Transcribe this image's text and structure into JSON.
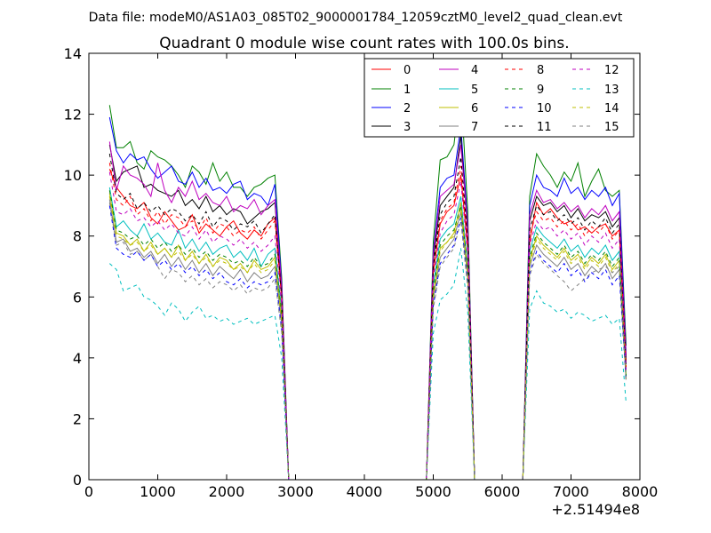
{
  "chart_data": {
    "type": "line",
    "suptitle": "Data file: modeM0/AS1A03_085T02_9000001784_12059cztM0_level2_quad_clean.evt",
    "title": "Quadrant 0 module wise count rates with 100.0s bins.",
    "xlabel": "",
    "ylabel": "",
    "x_offset_label": "+2.51494e8",
    "xlim": [
      0,
      8000
    ],
    "ylim": [
      0,
      14
    ],
    "xticks": [
      "0",
      "1000",
      "2000",
      "3000",
      "4000",
      "5000",
      "6000",
      "7000",
      "8000"
    ],
    "yticks": [
      "0",
      "2",
      "4",
      "6",
      "8",
      "10",
      "12",
      "14"
    ],
    "legend_position": "top-right",
    "segments": [
      {
        "x_start": 300,
        "x_step": 100,
        "n": 26
      },
      {
        "x_start": 5000,
        "x_step": 100,
        "n": 6
      },
      {
        "x_start": 6400,
        "x_step": 100,
        "n": 15
      }
    ],
    "gap_x": [
      2900,
      3000,
      4000,
      4900,
      5600,
      6300
    ],
    "series": [
      {
        "name": "0",
        "color": "#ff0000",
        "dash": false,
        "level": 8.4,
        "segments": [
          [
            10.2,
            9.6,
            9.3,
            9.0,
            8.9,
            9.1,
            8.6,
            8.4,
            8.8,
            8.5,
            8.2,
            8.3,
            8.7,
            8.1,
            8.4,
            8.2,
            8.0,
            8.3,
            8.5,
            8.1,
            7.9,
            8.2,
            8.0,
            8.4,
            8.6,
            6.0
          ],
          [
            6.8,
            8.4,
            8.8,
            9.0,
            10.0,
            7.6
          ],
          [
            7.8,
            9.1,
            8.7,
            8.9,
            8.6,
            8.4,
            8.5,
            8.2,
            8.3,
            8.1,
            8.3,
            8.4,
            8.0,
            8.2,
            3.6
          ]
        ]
      },
      {
        "name": "1",
        "color": "#008000",
        "dash": false,
        "level": 10.0,
        "segments": [
          [
            12.3,
            10.9,
            10.9,
            11.1,
            10.4,
            10.2,
            10.8,
            10.6,
            10.5,
            10.3,
            10.0,
            9.6,
            10.3,
            10.1,
            9.7,
            10.4,
            9.8,
            10.1,
            9.6,
            9.6,
            9.3,
            9.6,
            9.7,
            9.9,
            10.0,
            6.6
          ],
          [
            7.8,
            10.5,
            10.6,
            11.0,
            12.9,
            8.8
          ],
          [
            9.3,
            10.7,
            10.3,
            10.0,
            9.6,
            10.1,
            9.8,
            10.4,
            9.3,
            9.8,
            10.2,
            9.5,
            9.3,
            9.5,
            4.4
          ]
        ]
      },
      {
        "name": "2",
        "color": "#0000ff",
        "dash": false,
        "level": 9.8,
        "segments": [
          [
            11.9,
            10.8,
            10.4,
            10.7,
            10.5,
            10.6,
            10.2,
            9.9,
            10.1,
            10.3,
            9.8,
            9.7,
            10.1,
            9.6,
            9.9,
            9.5,
            9.6,
            9.4,
            9.7,
            9.8,
            9.2,
            9.4,
            9.3,
            9.0,
            9.7,
            6.4
          ],
          [
            7.5,
            9.6,
            9.9,
            10.0,
            11.6,
            8.4
          ],
          [
            9.0,
            10.0,
            9.6,
            9.5,
            9.3,
            9.9,
            9.4,
            9.6,
            9.2,
            9.5,
            9.3,
            9.6,
            9.0,
            9.4,
            4.1
          ]
        ]
      },
      {
        "name": "3",
        "color": "#000000",
        "dash": false,
        "level": 9.0,
        "segments": [
          [
            11.0,
            9.8,
            10.1,
            10.2,
            10.3,
            9.6,
            9.7,
            9.5,
            9.4,
            9.3,
            9.5,
            9.0,
            9.2,
            8.9,
            9.3,
            8.8,
            9.0,
            8.7,
            8.9,
            8.8,
            8.4,
            8.6,
            8.8,
            8.9,
            9.1,
            6.2
          ],
          [
            7.2,
            9.0,
            9.3,
            9.6,
            11.3,
            8.1
          ],
          [
            8.5,
            9.3,
            9.0,
            9.1,
            8.8,
            9.0,
            8.6,
            8.9,
            8.5,
            8.7,
            8.6,
            8.8,
            8.3,
            8.6,
            3.9
          ]
        ]
      },
      {
        "name": "4",
        "color": "#bf00bf",
        "dash": false,
        "level": 9.4,
        "segments": [
          [
            11.1,
            9.5,
            10.3,
            10.0,
            9.9,
            9.7,
            9.3,
            10.4,
            9.5,
            9.1,
            9.6,
            9.3,
            9.8,
            9.2,
            9.4,
            9.1,
            9.0,
            9.3,
            8.8,
            9.0,
            8.9,
            9.2,
            8.7,
            9.0,
            9.2,
            6.3
          ],
          [
            7.4,
            9.3,
            9.5,
            9.7,
            11.0,
            8.3
          ],
          [
            8.7,
            9.5,
            9.1,
            9.2,
            8.9,
            9.1,
            8.8,
            9.0,
            8.6,
            8.9,
            8.7,
            9.0,
            8.5,
            8.8,
            4.0
          ]
        ]
      },
      {
        "name": "5",
        "color": "#00bfbf",
        "dash": false,
        "level": 7.9,
        "segments": [
          [
            9.6,
            8.3,
            8.5,
            8.2,
            8.0,
            8.4,
            7.9,
            8.1,
            7.8,
            7.7,
            8.2,
            7.6,
            7.9,
            7.5,
            7.8,
            7.4,
            7.6,
            7.7,
            7.3,
            7.5,
            7.2,
            7.6,
            7.0,
            7.4,
            7.6,
            5.5
          ],
          [
            6.4,
            7.9,
            8.2,
            8.4,
            9.3,
            7.0
          ],
          [
            7.5,
            8.3,
            8.0,
            7.8,
            7.6,
            7.9,
            7.5,
            7.7,
            7.3,
            7.6,
            7.4,
            7.7,
            7.2,
            7.5,
            3.5
          ]
        ]
      },
      {
        "name": "6",
        "color": "#bfbf00",
        "dash": false,
        "level": 7.6,
        "segments": [
          [
            9.4,
            8.1,
            8.0,
            7.7,
            7.9,
            7.5,
            7.8,
            7.4,
            7.6,
            7.3,
            7.7,
            7.2,
            7.5,
            7.1,
            7.4,
            7.0,
            7.3,
            7.2,
            6.9,
            7.1,
            6.8,
            7.2,
            6.9,
            7.0,
            7.3,
            5.3
          ],
          [
            6.1,
            7.6,
            7.8,
            8.1,
            9.1,
            6.8
          ],
          [
            7.2,
            8.0,
            7.7,
            7.5,
            7.3,
            7.6,
            7.2,
            7.4,
            7.0,
            7.3,
            7.1,
            7.4,
            6.9,
            7.2,
            3.4
          ]
        ]
      },
      {
        "name": "7",
        "color": "#808080",
        "dash": false,
        "level": 7.3,
        "segments": [
          [
            9.2,
            7.8,
            7.9,
            7.5,
            7.6,
            7.3,
            7.5,
            7.1,
            7.4,
            7.0,
            7.3,
            6.9,
            7.2,
            6.8,
            7.1,
            6.7,
            7.0,
            6.8,
            6.6,
            6.9,
            6.5,
            6.8,
            6.6,
            6.7,
            7.0,
            5.1
          ],
          [
            5.9,
            7.3,
            7.6,
            7.9,
            8.8,
            6.6
          ],
          [
            7.0,
            7.7,
            7.4,
            7.2,
            7.0,
            7.3,
            6.9,
            7.1,
            6.7,
            7.0,
            6.8,
            7.1,
            6.6,
            6.9,
            3.3
          ]
        ]
      },
      {
        "name": "8",
        "color": "#ff0000",
        "dash": true,
        "level": 8.6,
        "segments": [
          [
            10.4,
            9.2,
            9.0,
            9.3,
            8.7,
            8.9,
            8.5,
            8.8,
            8.4,
            8.7,
            8.6,
            8.3,
            8.5,
            8.2,
            8.6,
            8.1,
            8.4,
            8.3,
            8.0,
            8.2,
            8.1,
            8.3,
            7.9,
            8.2,
            8.5,
            5.9
          ],
          [
            6.9,
            8.5,
            8.9,
            9.1,
            10.3,
            7.8
          ],
          [
            8.0,
            8.8,
            8.5,
            8.6,
            8.3,
            8.5,
            8.2,
            8.4,
            8.0,
            8.3,
            8.1,
            8.4,
            7.9,
            8.2,
            3.7
          ]
        ]
      },
      {
        "name": "9",
        "color": "#008000",
        "dash": true,
        "level": 7.7,
        "segments": [
          [
            9.5,
            8.2,
            8.1,
            7.9,
            8.0,
            7.7,
            7.9,
            7.6,
            7.8,
            7.5,
            7.7,
            7.4,
            7.6,
            7.3,
            7.5,
            7.2,
            7.4,
            7.3,
            7.1,
            7.2,
            7.0,
            7.3,
            7.0,
            7.1,
            7.4,
            5.4
          ],
          [
            6.2,
            7.7,
            8.0,
            8.2,
            9.0,
            6.9
          ],
          [
            7.3,
            8.1,
            7.8,
            7.6,
            7.4,
            7.7,
            7.3,
            7.5,
            7.1,
            7.4,
            7.2,
            7.5,
            7.0,
            7.3,
            3.4
          ]
        ]
      },
      {
        "name": "10",
        "color": "#0000ff",
        "dash": true,
        "level": 7.1,
        "segments": [
          [
            9.0,
            7.6,
            7.4,
            7.3,
            7.5,
            7.2,
            7.4,
            7.0,
            7.2,
            6.9,
            7.1,
            6.8,
            7.0,
            6.7,
            6.9,
            6.6,
            6.8,
            6.5,
            6.4,
            6.6,
            6.3,
            6.5,
            6.4,
            6.5,
            6.8,
            4.9
          ],
          [
            5.7,
            7.1,
            7.4,
            7.7,
            8.6,
            6.4
          ],
          [
            6.8,
            7.5,
            7.2,
            7.0,
            6.8,
            7.1,
            6.7,
            6.9,
            6.5,
            6.8,
            6.6,
            6.9,
            6.4,
            6.7,
            3.2
          ]
        ]
      },
      {
        "name": "11",
        "color": "#000000",
        "dash": true,
        "level": 8.8,
        "segments": [
          [
            10.7,
            9.4,
            9.2,
            9.4,
            8.9,
            9.1,
            8.8,
            9.0,
            8.7,
            8.9,
            8.8,
            8.5,
            8.7,
            8.4,
            8.8,
            8.3,
            8.6,
            8.5,
            8.2,
            8.4,
            8.3,
            8.5,
            8.1,
            8.4,
            8.7,
            6.0
          ],
          [
            7.0,
            8.7,
            9.1,
            9.3,
            10.6,
            7.9
          ],
          [
            8.2,
            9.0,
            8.7,
            8.8,
            8.5,
            8.7,
            8.4,
            8.6,
            8.2,
            8.5,
            8.3,
            8.6,
            8.1,
            8.4,
            3.8
          ]
        ]
      },
      {
        "name": "12",
        "color": "#bf00bf",
        "dash": true,
        "level": 8.2,
        "segments": [
          [
            10.1,
            8.8,
            8.7,
            8.9,
            8.5,
            8.6,
            8.3,
            8.5,
            8.2,
            8.4,
            8.1,
            8.0,
            8.3,
            7.9,
            8.2,
            7.8,
            8.0,
            7.9,
            7.7,
            7.9,
            7.6,
            7.8,
            7.5,
            7.7,
            8.0,
            5.7
          ],
          [
            6.6,
            8.1,
            8.5,
            8.7,
            9.8,
            7.4
          ],
          [
            7.7,
            8.5,
            8.2,
            8.3,
            8.0,
            8.2,
            7.9,
            8.1,
            7.7,
            8.0,
            7.8,
            8.1,
            7.6,
            7.9,
            3.6
          ]
        ]
      },
      {
        "name": "13",
        "color": "#00bfbf",
        "dash": true,
        "level": 5.8,
        "segments": [
          [
            7.1,
            6.9,
            6.2,
            6.3,
            6.4,
            6.0,
            5.9,
            5.7,
            5.4,
            5.8,
            5.6,
            5.2,
            5.5,
            5.7,
            5.3,
            5.4,
            5.2,
            5.3,
            5.1,
            5.2,
            5.3,
            5.1,
            5.2,
            5.3,
            5.4,
            4.0
          ],
          [
            4.8,
            5.9,
            6.1,
            6.4,
            7.6,
            5.5
          ],
          [
            5.6,
            6.2,
            5.8,
            5.7,
            5.5,
            5.6,
            5.3,
            5.5,
            5.4,
            5.2,
            5.3,
            5.4,
            5.1,
            5.3,
            2.5
          ]
        ]
      },
      {
        "name": "14",
        "color": "#bfbf00",
        "dash": true,
        "level": 7.5,
        "segments": [
          [
            9.3,
            8.0,
            7.9,
            7.7,
            7.8,
            7.5,
            7.7,
            7.4,
            7.6,
            7.3,
            7.5,
            7.2,
            7.4,
            7.1,
            7.3,
            7.0,
            7.2,
            7.1,
            6.9,
            7.0,
            6.8,
            7.1,
            6.8,
            6.9,
            7.2,
            5.2
          ],
          [
            6.0,
            7.5,
            7.8,
            8.0,
            8.9,
            6.7
          ],
          [
            7.1,
            7.9,
            7.6,
            7.4,
            7.2,
            7.5,
            7.1,
            7.3,
            6.9,
            7.2,
            7.0,
            7.3,
            6.8,
            7.1,
            3.3
          ]
        ]
      },
      {
        "name": "15",
        "color": "#808080",
        "dash": true,
        "level": 7.4,
        "segments": [
          [
            9.1,
            7.7,
            7.8,
            7.4,
            7.5,
            7.2,
            7.4,
            7.0,
            6.6,
            6.9,
            6.8,
            6.5,
            6.7,
            6.4,
            6.6,
            6.3,
            6.5,
            6.4,
            6.2,
            6.4,
            6.1,
            6.3,
            6.2,
            6.3,
            6.6,
            4.8
          ],
          [
            5.6,
            7.0,
            7.3,
            7.6,
            8.5,
            6.3
          ],
          [
            6.7,
            7.4,
            7.1,
            6.9,
            6.7,
            6.5,
            6.2,
            6.4,
            6.6,
            6.8,
            6.9,
            7.0,
            6.8,
            7.0,
            3.2
          ]
        ]
      }
    ]
  }
}
